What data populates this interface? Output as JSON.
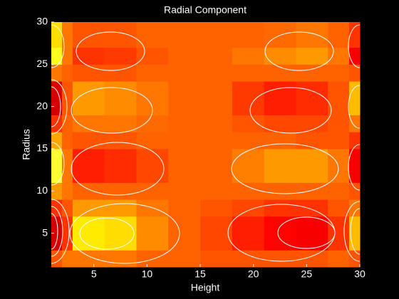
{
  "chart_data": {
    "type": "heatmap",
    "title": "Radial Component",
    "x_label": "Height",
    "y_label": "Radius",
    "x_edges": [
      1,
      2,
      3,
      6,
      9,
      12,
      15,
      18,
      21,
      24,
      27,
      29,
      30
    ],
    "y_edges": [
      1,
      3,
      7,
      9,
      11,
      15,
      17,
      19,
      23,
      25,
      27,
      30
    ],
    "values": [
      [
        0.5,
        0.55,
        0.55,
        0.55,
        0.52,
        0.52,
        0.5,
        0.5,
        0.5,
        0.5,
        0.52,
        0.5
      ],
      [
        0.3,
        0.45,
        0.72,
        0.7,
        0.58,
        0.52,
        0.48,
        0.42,
        0.38,
        0.35,
        0.45,
        0.65
      ],
      [
        0.45,
        0.5,
        0.6,
        0.6,
        0.55,
        0.52,
        0.5,
        0.48,
        0.45,
        0.45,
        0.5,
        0.55
      ],
      [
        0.6,
        0.55,
        0.52,
        0.52,
        0.52,
        0.52,
        0.52,
        0.52,
        0.52,
        0.52,
        0.52,
        0.5
      ],
      [
        0.8,
        0.55,
        0.42,
        0.44,
        0.48,
        0.52,
        0.52,
        0.56,
        0.6,
        0.6,
        0.55,
        0.35
      ],
      [
        0.62,
        0.52,
        0.5,
        0.5,
        0.52,
        0.52,
        0.52,
        0.52,
        0.52,
        0.5,
        0.5,
        0.45
      ],
      [
        0.45,
        0.52,
        0.55,
        0.55,
        0.53,
        0.52,
        0.52,
        0.5,
        0.48,
        0.48,
        0.5,
        0.55
      ],
      [
        0.3,
        0.5,
        0.6,
        0.58,
        0.55,
        0.52,
        0.52,
        0.46,
        0.42,
        0.44,
        0.5,
        0.65
      ],
      [
        0.55,
        0.52,
        0.5,
        0.5,
        0.52,
        0.52,
        0.52,
        0.52,
        0.52,
        0.52,
        0.52,
        0.5
      ],
      [
        0.78,
        0.55,
        0.45,
        0.46,
        0.5,
        0.52,
        0.52,
        0.55,
        0.58,
        0.6,
        0.55,
        0.35
      ],
      [
        0.7,
        0.55,
        0.5,
        0.5,
        0.52,
        0.52,
        0.52,
        0.52,
        0.53,
        0.55,
        0.52,
        0.45
      ]
    ],
    "colormap": "hot",
    "xlim": [
      1,
      30
    ],
    "ylim": [
      1,
      30
    ],
    "xticks": [
      5,
      10,
      15,
      20,
      25,
      30
    ],
    "yticks": [
      5,
      10,
      15,
      20,
      25,
      30
    ]
  }
}
